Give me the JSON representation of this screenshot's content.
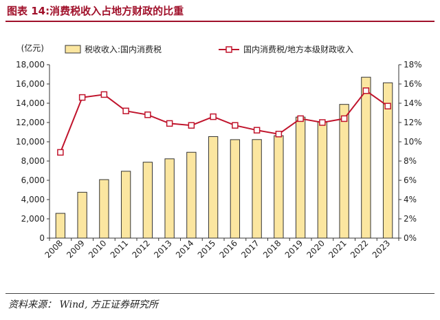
{
  "header": {
    "title": "图表 14:消费税收入占地方财政的比重"
  },
  "footer": {
    "source": "资料来源： Wind, 方正证券研究所"
  },
  "chart_data": {
    "type": "bar",
    "categories": [
      "2008",
      "2009",
      "2010",
      "2011",
      "2012",
      "2013",
      "2014",
      "2015",
      "2016",
      "2017",
      "2018",
      "2019",
      "2020",
      "2021",
      "2022",
      "2023"
    ],
    "series": [
      {
        "name": "税收收入:国内消费税",
        "type": "bar",
        "axis": "left",
        "color": "#fbe6a0",
        "stroke": "#333333",
        "values": [
          2570,
          4760,
          6070,
          6940,
          7880,
          8230,
          8910,
          10540,
          10220,
          10230,
          10630,
          12560,
          12030,
          13880,
          16700,
          16120
        ]
      },
      {
        "name": "国内消费税/地方本级财政收入",
        "type": "line",
        "axis": "right",
        "color": "#c0142c",
        "values": [
          8.9,
          14.6,
          14.9,
          13.2,
          12.8,
          11.9,
          11.7,
          12.6,
          11.7,
          11.2,
          10.8,
          12.4,
          12.0,
          12.4,
          15.3,
          13.7
        ]
      }
    ],
    "yleft": {
      "unit": "(亿元)",
      "lim": [
        0,
        18000
      ],
      "ticks": [
        "0",
        "2,000",
        "4,000",
        "6,000",
        "8,000",
        "10,000",
        "12,000",
        "14,000",
        "16,000",
        "18,000"
      ]
    },
    "yright": {
      "lim": [
        0,
        18
      ],
      "ticks": [
        "0%",
        "2%",
        "4%",
        "6%",
        "8%",
        "10%",
        "12%",
        "14%",
        "16%",
        "18%"
      ]
    },
    "legend": "top",
    "grid": false
  }
}
